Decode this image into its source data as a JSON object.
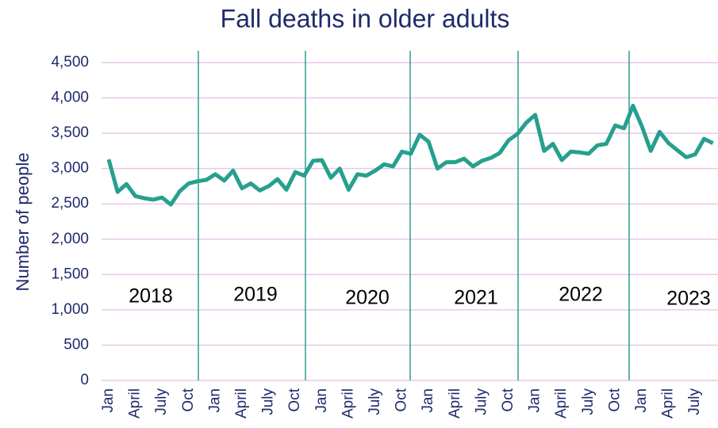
{
  "chart_data": {
    "type": "line",
    "title": "Fall deaths in older adults",
    "y_label": "Number of people",
    "categories": [
      "Jan",
      null,
      null,
      "April",
      null,
      null,
      "July",
      null,
      null,
      "Oct",
      null,
      null,
      "Jan",
      null,
      null,
      "April",
      null,
      null,
      "July",
      null,
      null,
      "Oct",
      null,
      null,
      "Jan",
      null,
      null,
      "April",
      null,
      null,
      "July",
      null,
      null,
      "Oct",
      null,
      null,
      "Jan",
      null,
      null,
      "April",
      null,
      null,
      "July",
      null,
      null,
      "Oct",
      null,
      null,
      "Jan",
      null,
      null,
      "April",
      null,
      null,
      "July",
      null,
      null,
      "Oct",
      null,
      null,
      "Jan",
      null,
      null,
      "April",
      null,
      null,
      "July",
      null,
      null
    ],
    "series": [
      {
        "name": "Fall deaths",
        "color": "#26a08e",
        "values": [
          3130,
          2670,
          2780,
          2610,
          2580,
          2560,
          2590,
          2490,
          2680,
          2790,
          2820,
          2840,
          2920,
          2830,
          2970,
          2720,
          2790,
          2690,
          2750,
          2850,
          2700,
          2950,
          2900,
          3110,
          3120,
          2870,
          3000,
          2700,
          2920,
          2900,
          2970,
          3060,
          3030,
          3240,
          3210,
          3480,
          3380,
          3000,
          3090,
          3090,
          3140,
          3030,
          3110,
          3150,
          3220,
          3400,
          3490,
          3650,
          3760,
          3250,
          3350,
          3120,
          3240,
          3230,
          3210,
          3330,
          3350,
          3610,
          3570,
          3890,
          3600,
          3250,
          3520,
          3360,
          3260,
          3160,
          3200,
          3420,
          3360
        ]
      }
    ],
    "annotations": [
      "2018",
      "2019",
      "2020",
      "2021",
      "2022",
      "2023"
    ],
    "ylim": [
      0,
      4500
    ],
    "yticks": [
      0,
      500,
      {
        "value": 1000,
        "label": "1,000"
      },
      {
        "value": 1500,
        "label": "1,500"
      },
      {
        "value": 2000,
        "label": "2,000"
      },
      {
        "value": 2500,
        "label": "2,500"
      },
      {
        "value": 3000,
        "label": "3,000"
      },
      {
        "value": 3500,
        "label": "3,500"
      },
      {
        "value": 4000,
        "label": "4,000"
      },
      {
        "value": 4500,
        "label": "4,500"
      }
    ],
    "grid": true
  }
}
